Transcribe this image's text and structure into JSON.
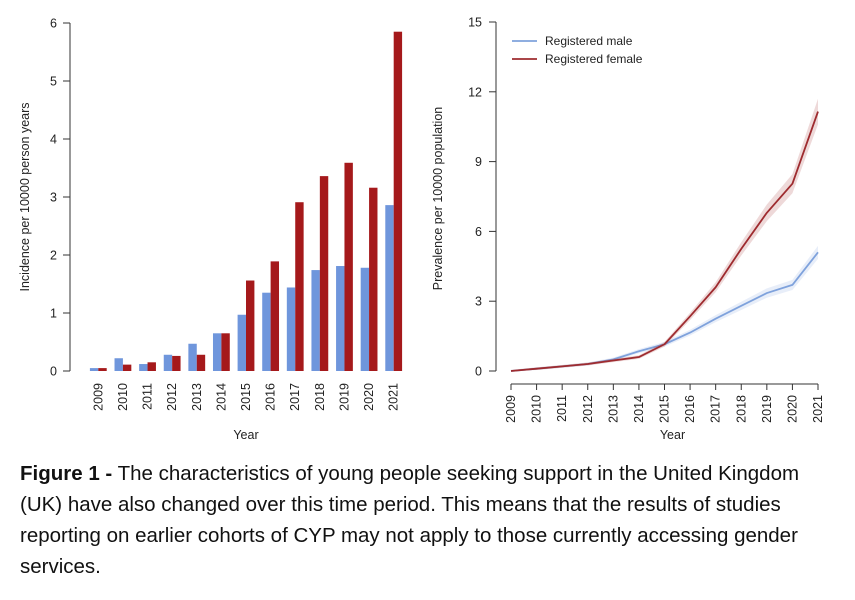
{
  "caption": {
    "label": "Figure 1 -",
    "text": " The characteristics of young people seeking support in the United Kingdom (UK) have also changed over this time period. This means that the results of studies reporting on earlier cohorts of CYP may not apply to those currently accessing gender services."
  },
  "colors": {
    "male": "#6f96dc",
    "female": "#a5191b",
    "male_line": "#7fa2dc",
    "female_line": "#9e2b2f"
  },
  "chart_data": [
    {
      "type": "bar",
      "xlabel": "Year",
      "ylabel": "Incidence per 10000 person years",
      "ylim": [
        0,
        6
      ],
      "yticks": [
        0,
        1,
        2,
        3,
        4,
        5,
        6
      ],
      "categories": [
        "2009",
        "2010",
        "2011",
        "2012",
        "2013",
        "2014",
        "2015",
        "2016",
        "2017",
        "2018",
        "2019",
        "2020",
        "2021"
      ],
      "series": [
        {
          "key": "male",
          "values": [
            0.05,
            0.22,
            0.12,
            0.28,
            0.47,
            0.65,
            0.97,
            1.35,
            1.44,
            1.74,
            1.81,
            1.78,
            2.86
          ]
        },
        {
          "key": "female",
          "values": [
            0.05,
            0.11,
            0.15,
            0.26,
            0.28,
            0.65,
            1.56,
            1.89,
            2.91,
            3.36,
            3.59,
            3.16,
            5.85
          ]
        }
      ]
    },
    {
      "type": "line",
      "xlabel": "Year",
      "ylabel": "Prevalence per 10000 population",
      "ylim": [
        0,
        15
      ],
      "yticks": [
        0,
        3,
        6,
        9,
        12,
        15
      ],
      "x": [
        "2009",
        "2010",
        "2011",
        "2012",
        "2013",
        "2014",
        "2015",
        "2016",
        "2017",
        "2018",
        "2019",
        "2020",
        "2021"
      ],
      "legend_position": "top-left",
      "series": [
        {
          "key": "male",
          "name": "Registered male",
          "values": [
            0,
            0.1,
            0.2,
            0.3,
            0.5,
            0.85,
            1.15,
            1.65,
            2.25,
            2.8,
            3.35,
            3.7,
            5.1
          ]
        },
        {
          "key": "female",
          "name": "Registered female",
          "values": [
            0,
            0.1,
            0.2,
            0.3,
            0.45,
            0.6,
            1.15,
            2.35,
            3.6,
            5.25,
            6.8,
            8.05,
            11.15
          ]
        }
      ]
    }
  ]
}
